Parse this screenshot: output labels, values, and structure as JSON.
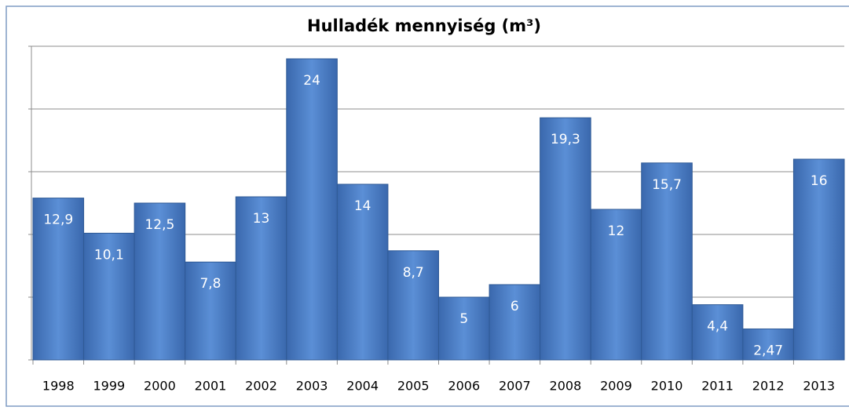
{
  "chart_data": {
    "type": "bar",
    "title": "Hulladék mennyiség (m³)",
    "categories": [
      "1998",
      "1999",
      "2000",
      "2001",
      "2002",
      "2003",
      "2004",
      "2005",
      "2006",
      "2007",
      "2008",
      "2009",
      "2010",
      "2011",
      "2012",
      "2013"
    ],
    "values": [
      12.9,
      10.1,
      12.5,
      7.8,
      13,
      24,
      14,
      8.7,
      5,
      6,
      19.3,
      12,
      15.7,
      4.4,
      2.47,
      16
    ],
    "value_labels": [
      "12,9",
      "10,1",
      "12,5",
      "7,8",
      "13",
      "24",
      "14",
      "8,7",
      "5",
      "6",
      "19,3",
      "12",
      "15,7",
      "4,4",
      "2,47",
      "16"
    ],
    "color": "#4a7fc9",
    "ylim": [
      0,
      25
    ],
    "yticks": [
      0,
      5,
      10,
      15,
      20,
      25
    ],
    "grid": true
  }
}
